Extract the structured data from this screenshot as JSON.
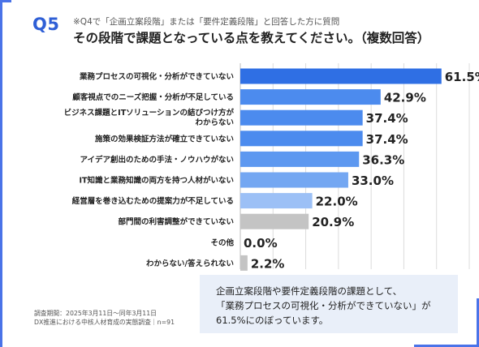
{
  "header": {
    "qnum": "Q5",
    "subtitle": "※Q4で「企画立案段階」または「要件定義段階」と回答した方に質問",
    "title": "その段階で課題となっている点を教えてください。（複数回答）"
  },
  "chart_data": {
    "type": "bar",
    "orientation": "horizontal",
    "categories": [
      "業務プロセスの可視化・分析ができていない",
      "顧客視点でのニーズ把握・分析が不足している",
      "ビジネス課題とITソリューションの結びつけ方がわからない",
      "施策の効果検証方法が確立できていない",
      "アイデア創出のための手法・ノウハウがない",
      "IT知識と業務知識の両方を持つ人材がいない",
      "経営層を巻き込むための提案力が不足している",
      "部門間の利害調整ができていない",
      "その他",
      "わからない/答えられない"
    ],
    "category_lines": [
      [
        "業務プロセスの可視化・分析ができていない"
      ],
      [
        "顧客視点でのニーズ把握・分析が不足している"
      ],
      [
        "ビジネス課題とITソリューションの結びつけ方が",
        "わからない"
      ],
      [
        "施策の効果検証方法が確立できていない"
      ],
      [
        "アイデア創出のための手法・ノウハウがない"
      ],
      [
        "IT知識と業務知識の両方を持つ人材がいない"
      ],
      [
        "経営層を巻き込むための提案力が不足している"
      ],
      [
        "部門間の利害調整ができていない"
      ],
      [
        "その他"
      ],
      [
        "わからない/答えられない"
      ]
    ],
    "values": [
      61.5,
      42.9,
      37.4,
      37.4,
      36.3,
      33.0,
      22.0,
      20.9,
      0.0,
      2.2
    ],
    "value_labels": [
      "61.5%",
      "42.9%",
      "37.4%",
      "37.4%",
      "36.3%",
      "33.0%",
      "22.0%",
      "20.9%",
      "0.0%",
      "2.2%"
    ],
    "bar_colors": [
      "#2f6fe4",
      "#4c8bee",
      "#4c8bee",
      "#4c8bee",
      "#5d98f0",
      "#74a7f2",
      "#9cc0f6",
      "#c4c4c4",
      "#c4c4c4",
      "#c4c4c4"
    ],
    "xlim": [
      0,
      70
    ],
    "grid": true
  },
  "note": {
    "lines": [
      "企画立案段階や要件定義段階の課題として、",
      "「業務プロセスの可視化・分析ができていない」が",
      "61.5%にのぼっています。"
    ]
  },
  "footer": {
    "lines": [
      "調査期間：2025年3月11日～同年3月11日",
      "DX推進における中核人材育成の実態調査｜n=91"
    ]
  }
}
